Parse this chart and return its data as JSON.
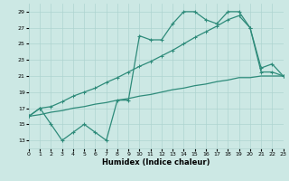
{
  "xlabel": "Humidex (Indice chaleur)",
  "color": "#2e8b7a",
  "bg_color": "#cce8e4",
  "grid_color": "#aed4d0",
  "ylim": [
    12,
    30
  ],
  "xlim": [
    0,
    23
  ],
  "yticks": [
    13,
    15,
    17,
    19,
    21,
    23,
    25,
    27,
    29
  ],
  "xticks": [
    0,
    1,
    2,
    3,
    4,
    5,
    6,
    7,
    8,
    9,
    10,
    11,
    12,
    13,
    14,
    15,
    16,
    17,
    18,
    19,
    20,
    21,
    22,
    23
  ],
  "jagged_x": [
    0,
    1,
    2,
    3,
    4,
    5,
    6,
    7,
    8,
    9,
    10,
    11,
    12,
    13,
    14,
    15,
    16,
    17,
    18,
    19,
    20,
    21,
    22,
    23
  ],
  "jagged_y": [
    16,
    17,
    15,
    13,
    14,
    15,
    14,
    13,
    18,
    18,
    26,
    25.5,
    25.5,
    27.5,
    29,
    29,
    28,
    27.5,
    29,
    29,
    27,
    22,
    22.5,
    21
  ],
  "upper_x": [
    0,
    1,
    2,
    3,
    4,
    5,
    6,
    7,
    8,
    9,
    10,
    11,
    12,
    13,
    14,
    15,
    16,
    17,
    18,
    19,
    20,
    21,
    22,
    23
  ],
  "upper_y": [
    16,
    17,
    17.2,
    17.8,
    18.5,
    19.0,
    19.5,
    20.2,
    20.8,
    21.5,
    22.2,
    22.8,
    23.5,
    24.2,
    25.0,
    25.8,
    26.5,
    27.2,
    28.0,
    28.5,
    27.0,
    21.5,
    21.5,
    21.0
  ],
  "lower_x": [
    0,
    1,
    2,
    3,
    4,
    5,
    6,
    7,
    8,
    9,
    10,
    11,
    12,
    13,
    14,
    15,
    16,
    17,
    18,
    19,
    20,
    21,
    22,
    23
  ],
  "lower_y": [
    16,
    16.2,
    16.5,
    16.7,
    17.0,
    17.2,
    17.5,
    17.7,
    18.0,
    18.2,
    18.5,
    18.7,
    19.0,
    19.3,
    19.5,
    19.8,
    20.0,
    20.3,
    20.5,
    20.8,
    20.8,
    21.0,
    21.0,
    21.0
  ]
}
